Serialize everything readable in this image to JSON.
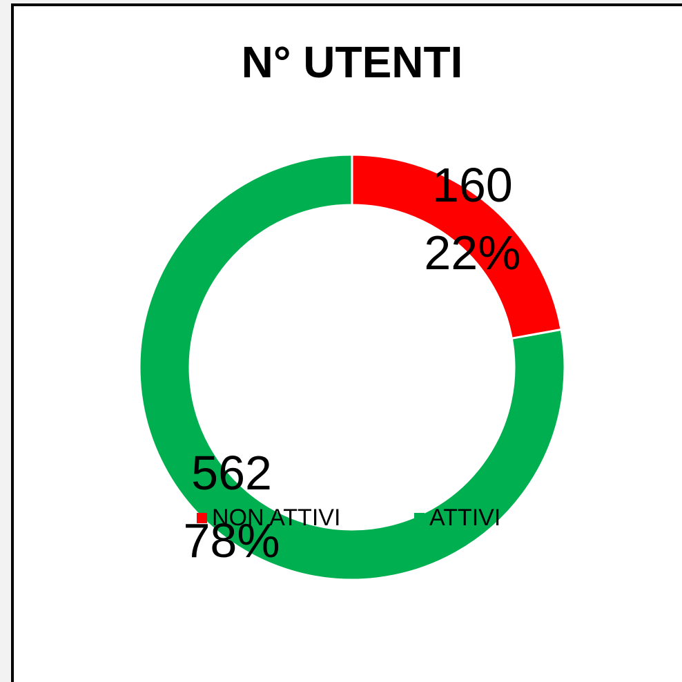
{
  "chart_data": {
    "type": "donut",
    "title": "N° UTENTI",
    "categories": [
      "NON ATTIVI",
      "ATTIVI"
    ],
    "values": [
      160,
      562
    ],
    "percents": [
      22,
      78
    ],
    "percent_labels": [
      "22%",
      "78%"
    ],
    "colors": [
      "#ff0000",
      "#00b050"
    ],
    "legend": "bottom"
  }
}
